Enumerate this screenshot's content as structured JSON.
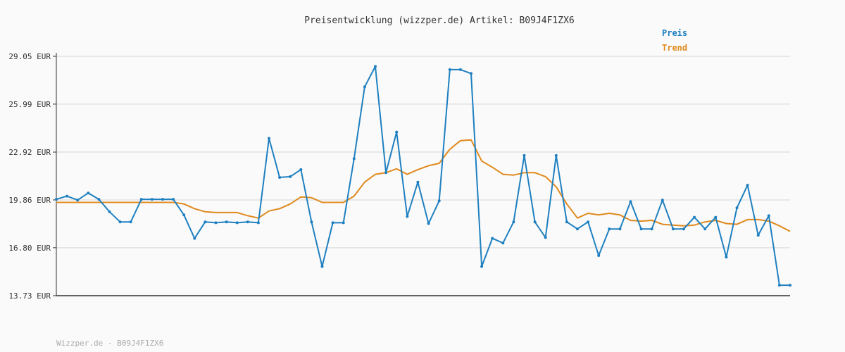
{
  "footer": "Wizzper.de - B09J4F1ZX6",
  "colors": {
    "preis": "#1f80c0",
    "trend": "#e08a1e",
    "grid": "#e2e2e2",
    "axis": "#333333",
    "background": "#fafafa"
  },
  "chart_data": {
    "type": "line",
    "title": "Preisentwicklung (wizzper.de) Artikel: B09J4F1ZX6",
    "xlabel": "",
    "ylabel": "",
    "ylim": [
      13.73,
      29.05
    ],
    "yticks": [
      "29.05 EUR",
      "25.99 EUR",
      "22.92 EUR",
      "19.86 EUR",
      "16.80 EUR",
      "13.73 EUR"
    ],
    "ytick_values": [
      29.05,
      25.99,
      22.92,
      19.86,
      16.8,
      13.73
    ],
    "grid": true,
    "legend": "top-right",
    "series": [
      {
        "name": "Preis",
        "color": "#1f80c0",
        "markers": true,
        "values": [
          19.9,
          20.1,
          19.85,
          20.3,
          19.9,
          19.1,
          18.45,
          18.45,
          19.9,
          19.9,
          19.9,
          19.9,
          18.9,
          17.4,
          18.45,
          18.4,
          18.45,
          18.4,
          18.45,
          18.4,
          23.8,
          21.3,
          21.35,
          21.8,
          18.45,
          15.6,
          18.4,
          18.4,
          22.5,
          27.1,
          28.4,
          21.6,
          24.2,
          18.8,
          21.0,
          18.35,
          19.8,
          28.2,
          28.2,
          27.95,
          15.6,
          17.4,
          17.1,
          18.45,
          22.7,
          18.45,
          17.45,
          22.7,
          18.45,
          18.0,
          18.45,
          16.3,
          18.0,
          18.0,
          19.75,
          18.0,
          18.0,
          19.85,
          18.0,
          18.0,
          18.75,
          18.0,
          18.75,
          16.2,
          19.35,
          20.8,
          17.6,
          18.85,
          14.4,
          14.4
        ]
      },
      {
        "name": "Trend",
        "color": "#e08a1e",
        "markers": false,
        "values": [
          19.7,
          19.7,
          19.7,
          19.7,
          19.7,
          19.7,
          19.7,
          19.7,
          19.7,
          19.7,
          19.7,
          19.7,
          19.6,
          19.3,
          19.1,
          19.05,
          19.05,
          19.05,
          18.85,
          18.7,
          19.15,
          19.3,
          19.6,
          20.05,
          20.0,
          19.7,
          19.7,
          19.7,
          20.1,
          21.0,
          21.5,
          21.6,
          21.85,
          21.5,
          21.8,
          22.05,
          22.2,
          23.1,
          23.65,
          23.7,
          22.35,
          21.95,
          21.5,
          21.45,
          21.6,
          21.6,
          21.35,
          20.7,
          19.6,
          18.7,
          19.0,
          18.9,
          19.0,
          18.9,
          18.55,
          18.5,
          18.55,
          18.3,
          18.25,
          18.2,
          18.25,
          18.45,
          18.55,
          18.35,
          18.3,
          18.6,
          18.6,
          18.5,
          18.2,
          17.85
        ]
      }
    ]
  }
}
